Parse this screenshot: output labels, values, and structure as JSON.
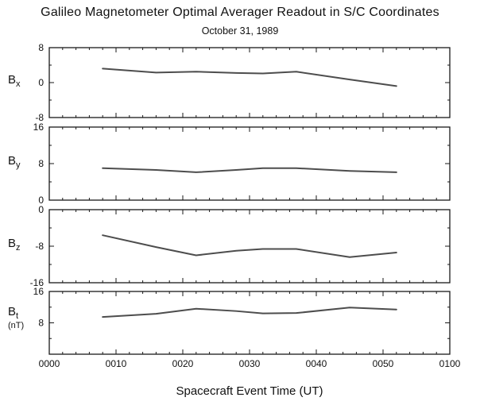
{
  "title": "Galileo Magnetometer Optimal Averager Readout in S/C Coordinates",
  "subtitle": "October 31, 1989",
  "x_axis": {
    "title": "Spacecraft Event Time (UT)",
    "tick_minutes": [
      0,
      10,
      20,
      30,
      40,
      50,
      60
    ],
    "tick_labels": [
      "0000",
      "0010",
      "0020",
      "0030",
      "0040",
      "0050",
      "0100"
    ]
  },
  "line_color": "#4d4d4d",
  "axis_color": "#1a1a1a",
  "chart_data": [
    {
      "type": "line",
      "name": "Bx",
      "label_base": "B",
      "label_sub": "x",
      "units": "",
      "ylim": [
        -8,
        8
      ],
      "yticks": [
        {
          "v": 8,
          "label": "8"
        },
        {
          "v": 0,
          "label": "0"
        },
        {
          "v": -8,
          "label": "-8"
        }
      ],
      "x_minutes": [
        8,
        16,
        22,
        28,
        32,
        37,
        45,
        52
      ],
      "values": [
        3.2,
        2.3,
        2.5,
        2.2,
        2.1,
        2.5,
        0.7,
        -0.8
      ]
    },
    {
      "type": "line",
      "name": "By",
      "label_base": "B",
      "label_sub": "y",
      "units": "",
      "ylim": [
        0,
        16
      ],
      "yticks": [
        {
          "v": 16,
          "label": "16"
        },
        {
          "v": 8,
          "label": "8"
        },
        {
          "v": 0,
          "label": "0"
        }
      ],
      "x_minutes": [
        8,
        16,
        22,
        28,
        32,
        37,
        45,
        52
      ],
      "values": [
        7.0,
        6.6,
        6.1,
        6.6,
        7.0,
        7.0,
        6.4,
        6.1
      ]
    },
    {
      "type": "line",
      "name": "Bz",
      "label_base": "B",
      "label_sub": "z",
      "units": "",
      "ylim": [
        -16,
        0
      ],
      "yticks": [
        {
          "v": 0,
          "label": "0"
        },
        {
          "v": -8,
          "label": "-8"
        },
        {
          "v": -16,
          "label": "-16"
        }
      ],
      "x_minutes": [
        8,
        16,
        22,
        28,
        32,
        37,
        45,
        52
      ],
      "values": [
        -5.6,
        -8.2,
        -10.0,
        -9.0,
        -8.6,
        -8.6,
        -10.4,
        -9.4
      ]
    },
    {
      "type": "line",
      "name": "Bt",
      "label_base": "B",
      "label_sub": "t",
      "units": "(nT)",
      "ylim": [
        0,
        16
      ],
      "yticks": [
        {
          "v": 16,
          "label": "16"
        },
        {
          "v": 8,
          "label": "8"
        }
      ],
      "x_minutes": [
        8,
        16,
        22,
        28,
        32,
        37,
        45,
        52
      ],
      "values": [
        9.5,
        10.3,
        11.6,
        11.0,
        10.4,
        10.5,
        11.9,
        11.4
      ]
    }
  ]
}
